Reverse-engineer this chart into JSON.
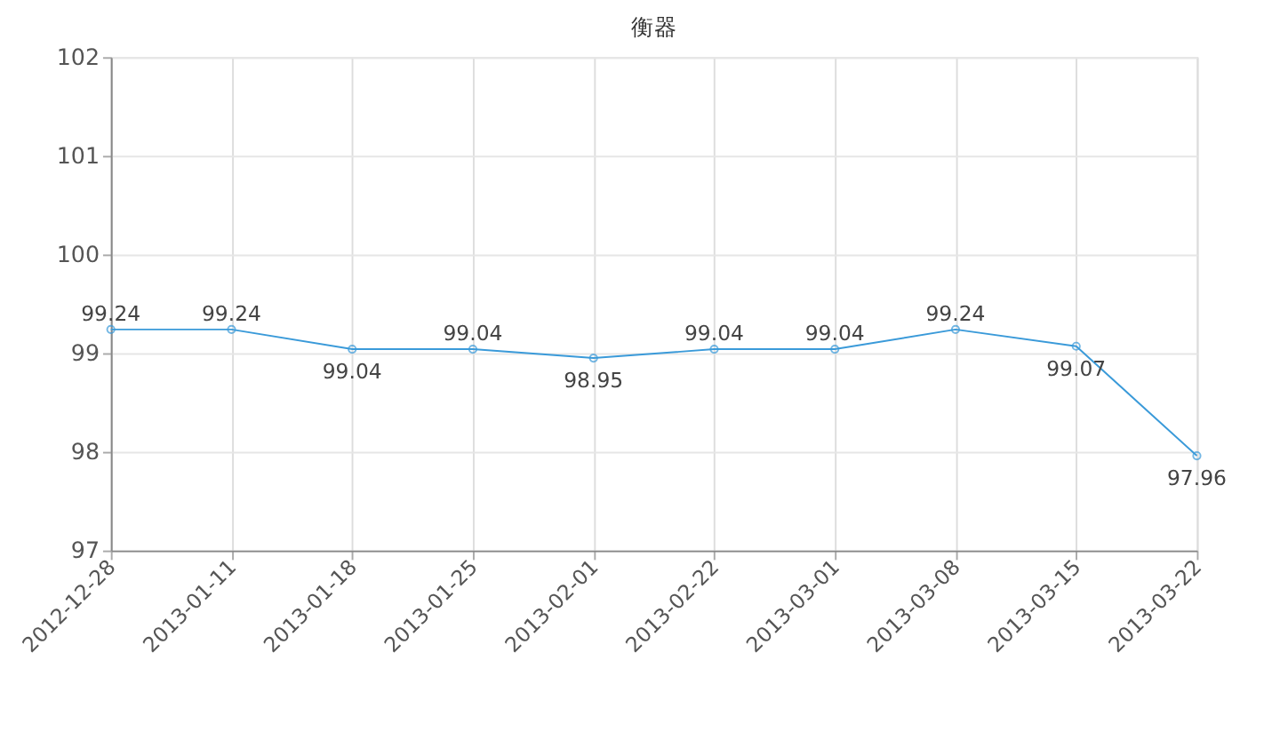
{
  "chart_data": {
    "type": "line",
    "title": "衡器",
    "categories": [
      "2012-12-28",
      "2013-01-11",
      "2013-01-18",
      "2013-01-25",
      "2013-02-01",
      "2013-02-22",
      "2013-03-01",
      "2013-03-08",
      "2013-03-15",
      "2013-03-22"
    ],
    "series": [
      {
        "color": "#3a9ad9",
        "values": [
          99.24,
          99.24,
          99.04,
          99.04,
          98.95,
          99.04,
          99.04,
          99.24,
          99.07,
          97.96
        ]
      }
    ],
    "ylim": [
      97,
      102
    ],
    "yticks": [
      97,
      98,
      99,
      100,
      101,
      102
    ],
    "grid": true,
    "marker": "circle",
    "data_labels": true,
    "line_style": "solid"
  }
}
